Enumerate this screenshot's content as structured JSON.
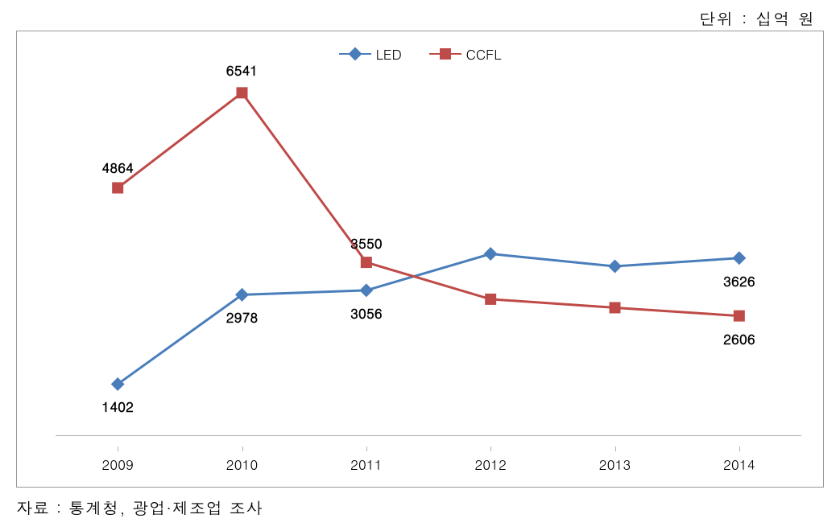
{
  "unit_label": "단위 : 십억 원",
  "source_label": "자료 : 통계청, 광업·제조업 조사",
  "chart": {
    "type": "line",
    "background_color": "#ffffff",
    "border_color": "#999999",
    "axis_color": "#b0b0b0",
    "ylim": [
      500,
      7000
    ],
    "y_baseline_value": 500,
    "categories": [
      "2009",
      "2010",
      "2011",
      "2012",
      "2013",
      "2014"
    ],
    "label_fontsize": 17,
    "label_bold": true,
    "series": [
      {
        "name": "LED",
        "color": "#4a7ebb",
        "marker": "diamond",
        "marker_size": 12,
        "line_width": 3,
        "values": [
          1402,
          2978,
          3056,
          3700,
          3480,
          3626
        ],
        "shown_labels": {
          "0": "1402",
          "1": "2978",
          "2": "3056",
          "5": "3626"
        }
      },
      {
        "name": "CCFL",
        "color": "#be4b48",
        "marker": "square",
        "marker_size": 14,
        "line_width": 3,
        "values": [
          4864,
          6541,
          3550,
          2900,
          2750,
          2606
        ],
        "shown_labels": {
          "0": "4864",
          "1": "6541",
          "2": "3550",
          "5": "2606"
        }
      }
    ],
    "legend": {
      "position": "top-center"
    }
  }
}
